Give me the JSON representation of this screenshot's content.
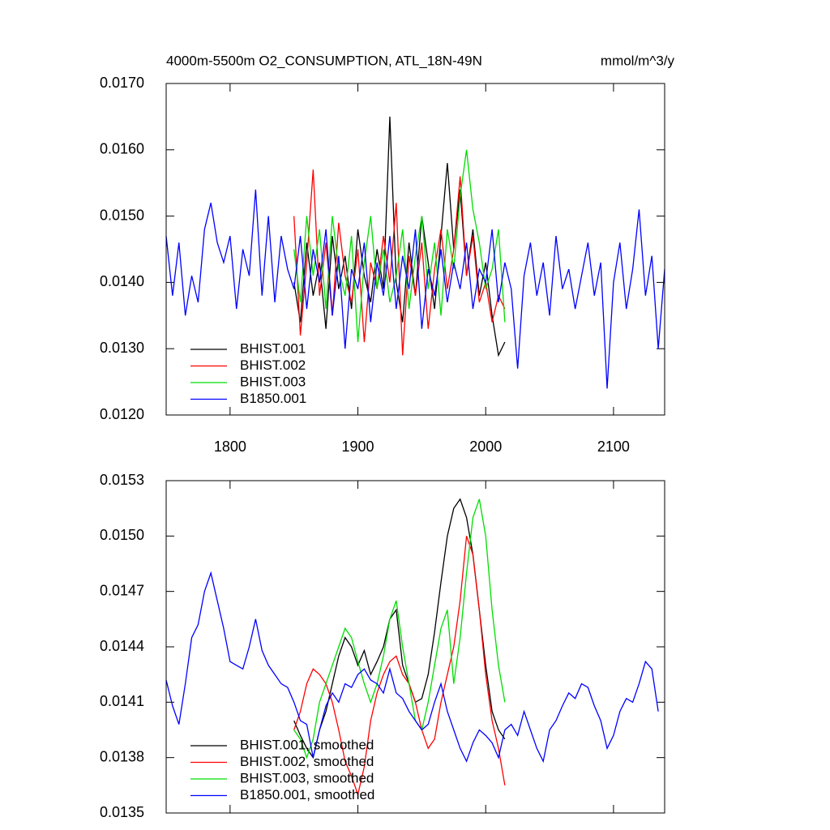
{
  "chart_data": [
    {
      "type": "line",
      "title": "4000m-5500m O2_CONSUMPTION, ATL_18N-49N",
      "units": "mmol/m^3/y",
      "xlim": [
        1750,
        2140
      ],
      "xticks": [
        1800,
        1900,
        2000,
        2100
      ],
      "ylim": [
        0.012,
        0.017
      ],
      "yticks": [
        {
          "value": 0.012,
          "label": "0.0120"
        },
        {
          "value": 0.013,
          "label": "0.0130"
        },
        {
          "value": 0.014,
          "label": "0.0140"
        },
        {
          "value": 0.015,
          "label": "0.0150"
        },
        {
          "value": 0.016,
          "label": "0.0160"
        },
        {
          "value": 0.017,
          "label": "0.0170"
        }
      ],
      "legend": "lower left",
      "series": [
        {
          "name": "BHIST.001",
          "color": "#000000",
          "x": [
            1850,
            1855,
            1860,
            1865,
            1870,
            1875,
            1880,
            1885,
            1890,
            1895,
            1900,
            1905,
            1910,
            1915,
            1920,
            1925,
            1930,
            1935,
            1940,
            1945,
            1950,
            1955,
            1960,
            1965,
            1970,
            1975,
            1980,
            1985,
            1990,
            1995,
            2000,
            2005,
            2010,
            2015
          ],
          "values": [
            0.014,
            0.0134,
            0.0146,
            0.0138,
            0.0143,
            0.0133,
            0.0147,
            0.0139,
            0.0144,
            0.0136,
            0.0148,
            0.0141,
            0.0137,
            0.0145,
            0.0139,
            0.0165,
            0.014,
            0.0134,
            0.0146,
            0.0138,
            0.015,
            0.0143,
            0.0136,
            0.0147,
            0.0158,
            0.0145,
            0.0154,
            0.0141,
            0.0148,
            0.0138,
            0.0143,
            0.0135,
            0.0129,
            0.0131
          ]
        },
        {
          "name": "BHIST.002",
          "color": "#ff0000",
          "x": [
            1850,
            1855,
            1860,
            1865,
            1870,
            1875,
            1880,
            1885,
            1890,
            1895,
            1900,
            1905,
            1910,
            1915,
            1920,
            1925,
            1930,
            1935,
            1940,
            1945,
            1950,
            1955,
            1960,
            1965,
            1970,
            1975,
            1980,
            1985,
            1990,
            1995,
            2000,
            2005,
            2010,
            2015
          ],
          "values": [
            0.015,
            0.0132,
            0.0143,
            0.0157,
            0.0138,
            0.0146,
            0.0135,
            0.0149,
            0.0141,
            0.0137,
            0.0145,
            0.0131,
            0.0143,
            0.0139,
            0.0147,
            0.014,
            0.0152,
            0.0129,
            0.0144,
            0.0138,
            0.0146,
            0.0133,
            0.0142,
            0.0148,
            0.0139,
            0.0145,
            0.0156,
            0.0141,
            0.0147,
            0.0137,
            0.014,
            0.0134,
            0.0138,
            0.0136
          ]
        },
        {
          "name": "BHIST.003",
          "color": "#00dd00",
          "x": [
            1850,
            1855,
            1860,
            1865,
            1870,
            1875,
            1880,
            1885,
            1890,
            1895,
            1900,
            1905,
            1910,
            1915,
            1920,
            1925,
            1930,
            1935,
            1940,
            1945,
            1950,
            1955,
            1960,
            1965,
            1970,
            1975,
            1980,
            1985,
            1990,
            1995,
            2000,
            2005,
            2010,
            2015
          ],
          "values": [
            0.0145,
            0.0137,
            0.015,
            0.0141,
            0.0148,
            0.0136,
            0.015,
            0.0142,
            0.0138,
            0.0147,
            0.0131,
            0.0143,
            0.015,
            0.0139,
            0.0145,
            0.0137,
            0.0141,
            0.0148,
            0.0136,
            0.0144,
            0.015,
            0.0139,
            0.0146,
            0.0135,
            0.0148,
            0.0142,
            0.0153,
            0.016,
            0.0151,
            0.0146,
            0.0139,
            0.0142,
            0.0148,
            0.0134
          ]
        },
        {
          "name": "B1850.001",
          "color": "#0000ff",
          "x": [
            1750,
            1755,
            1760,
            1765,
            1770,
            1775,
            1780,
            1785,
            1790,
            1795,
            1800,
            1805,
            1810,
            1815,
            1820,
            1825,
            1830,
            1835,
            1840,
            1845,
            1850,
            1855,
            1860,
            1865,
            1870,
            1875,
            1880,
            1885,
            1890,
            1895,
            1900,
            1905,
            1910,
            1915,
            1920,
            1925,
            1930,
            1935,
            1940,
            1945,
            1950,
            1955,
            1960,
            1965,
            1970,
            1975,
            1980,
            1985,
            1990,
            1995,
            2000,
            2005,
            2010,
            2015,
            2020,
            2025,
            2030,
            2035,
            2040,
            2045,
            2050,
            2055,
            2060,
            2065,
            2070,
            2075,
            2080,
            2085,
            2090,
            2095,
            2100,
            2105,
            2110,
            2115,
            2120,
            2125,
            2130,
            2135,
            2140
          ],
          "values": [
            0.0147,
            0.0138,
            0.0146,
            0.0135,
            0.0141,
            0.0137,
            0.0148,
            0.0152,
            0.0146,
            0.0143,
            0.0147,
            0.0136,
            0.0145,
            0.0141,
            0.0154,
            0.0138,
            0.015,
            0.0137,
            0.0147,
            0.0142,
            0.0139,
            0.0147,
            0.0136,
            0.0145,
            0.014,
            0.0148,
            0.0135,
            0.0144,
            0.013,
            0.0142,
            0.0139,
            0.0146,
            0.0134,
            0.0143,
            0.0138,
            0.0147,
            0.0136,
            0.0144,
            0.0139,
            0.0148,
            0.0133,
            0.0142,
            0.0138,
            0.0145,
            0.0137,
            0.0143,
            0.0139,
            0.0146,
            0.0136,
            0.0142,
            0.014,
            0.0148,
            0.0137,
            0.0143,
            0.0139,
            0.0127,
            0.0141,
            0.0146,
            0.0138,
            0.0143,
            0.0135,
            0.0147,
            0.0139,
            0.0142,
            0.0136,
            0.0141,
            0.0146,
            0.0138,
            0.0143,
            0.0124,
            0.014,
            0.0146,
            0.0136,
            0.0142,
            0.0151,
            0.0138,
            0.0144,
            0.013,
            0.0142
          ]
        }
      ]
    },
    {
      "type": "line",
      "xlim": [
        1750,
        2140
      ],
      "xticks": [
        1800,
        1900,
        2000,
        2100
      ],
      "ylim": [
        0.0135,
        0.0153
      ],
      "yticks": [
        0.0135,
        0.0138,
        0.0141,
        0.0144,
        0.0147,
        {
          "value": 0.015,
          "label": "0.0150"
        },
        0.0153
      ],
      "legend": "lower left",
      "series": [
        {
          "name": "BHIST.001, smoothed",
          "color": "#000000",
          "x": [
            1850,
            1855,
            1860,
            1865,
            1870,
            1875,
            1880,
            1885,
            1890,
            1895,
            1900,
            1905,
            1910,
            1915,
            1920,
            1925,
            1930,
            1935,
            1940,
            1945,
            1950,
            1955,
            1960,
            1965,
            1970,
            1975,
            1980,
            1985,
            1990,
            1995,
            2000,
            2005,
            2010,
            2015
          ],
          "values": [
            0.014,
            0.01392,
            0.01385,
            0.0138,
            0.01395,
            0.01405,
            0.0142,
            0.01435,
            0.01445,
            0.0144,
            0.0143,
            0.01438,
            0.01425,
            0.01432,
            0.0144,
            0.01455,
            0.0146,
            0.0143,
            0.0142,
            0.0141,
            0.01412,
            0.01425,
            0.01448,
            0.01475,
            0.015,
            0.01515,
            0.0152,
            0.0151,
            0.0149,
            0.0146,
            0.0143,
            0.01405,
            0.01395,
            0.0139
          ]
        },
        {
          "name": "BHIST.002, smoothed",
          "color": "#ff0000",
          "x": [
            1850,
            1855,
            1860,
            1865,
            1870,
            1875,
            1880,
            1885,
            1890,
            1895,
            1900,
            1905,
            1910,
            1915,
            1920,
            1925,
            1930,
            1935,
            1940,
            1945,
            1950,
            1955,
            1960,
            1965,
            1970,
            1975,
            1980,
            1985,
            1990,
            1995,
            2000,
            2005,
            2010,
            2015
          ],
          "values": [
            0.01395,
            0.01405,
            0.0142,
            0.01428,
            0.01425,
            0.0142,
            0.0141,
            0.01395,
            0.01378,
            0.0137,
            0.0136,
            0.01375,
            0.014,
            0.01415,
            0.01425,
            0.01432,
            0.01435,
            0.01425,
            0.0142,
            0.0141,
            0.01395,
            0.01385,
            0.0139,
            0.0141,
            0.01425,
            0.0144,
            0.01465,
            0.015,
            0.0149,
            0.0146,
            0.01425,
            0.014,
            0.01385,
            0.01365
          ]
        },
        {
          "name": "BHIST.003, smoothed",
          "color": "#00dd00",
          "x": [
            1850,
            1855,
            1860,
            1865,
            1870,
            1875,
            1880,
            1885,
            1890,
            1895,
            1900,
            1905,
            1910,
            1915,
            1920,
            1925,
            1930,
            1935,
            1940,
            1945,
            1950,
            1955,
            1960,
            1965,
            1970,
            1975,
            1980,
            1985,
            1990,
            1995,
            2000,
            2005,
            2010,
            2015
          ],
          "values": [
            0.01395,
            0.0139,
            0.0138,
            0.0139,
            0.0141,
            0.0142,
            0.0143,
            0.0144,
            0.0145,
            0.01445,
            0.01432,
            0.0142,
            0.0141,
            0.0142,
            0.01435,
            0.01455,
            0.01465,
            0.0144,
            0.0142,
            0.014,
            0.01395,
            0.0141,
            0.0143,
            0.0145,
            0.0146,
            0.0142,
            0.01445,
            0.0148,
            0.0151,
            0.0152,
            0.015,
            0.0146,
            0.0143,
            0.0141
          ]
        },
        {
          "name": "B1850.001, smoothed",
          "color": "#0000ff",
          "x": [
            1750,
            1755,
            1760,
            1765,
            1770,
            1775,
            1780,
            1785,
            1790,
            1795,
            1800,
            1805,
            1810,
            1815,
            1820,
            1825,
            1830,
            1835,
            1840,
            1845,
            1850,
            1855,
            1860,
            1865,
            1870,
            1875,
            1880,
            1885,
            1890,
            1895,
            1900,
            1905,
            1910,
            1915,
            1920,
            1925,
            1930,
            1935,
            1940,
            1945,
            1950,
            1955,
            1960,
            1965,
            1970,
            1975,
            1980,
            1985,
            1990,
            1995,
            2000,
            2005,
            2010,
            2015,
            2020,
            2025,
            2030,
            2035,
            2040,
            2045,
            2050,
            2055,
            2060,
            2065,
            2070,
            2075,
            2080,
            2085,
            2090,
            2095,
            2100,
            2105,
            2110,
            2115,
            2120,
            2125,
            2130,
            2135
          ],
          "values": [
            0.01422,
            0.01408,
            0.01398,
            0.0142,
            0.01445,
            0.01452,
            0.0147,
            0.0148,
            0.01465,
            0.0145,
            0.01432,
            0.0143,
            0.01428,
            0.0144,
            0.01455,
            0.01438,
            0.0143,
            0.01425,
            0.0142,
            0.01418,
            0.0141,
            0.014,
            0.01398,
            0.0138,
            0.01395,
            0.01408,
            0.01415,
            0.0141,
            0.0142,
            0.01418,
            0.01425,
            0.01428,
            0.01422,
            0.0142,
            0.01415,
            0.01428,
            0.01415,
            0.01412,
            0.01405,
            0.014,
            0.01395,
            0.01398,
            0.0141,
            0.0142,
            0.01405,
            0.01395,
            0.01385,
            0.01378,
            0.01388,
            0.01395,
            0.01392,
            0.01388,
            0.0138,
            0.01395,
            0.01398,
            0.01392,
            0.01405,
            0.01395,
            0.01385,
            0.01378,
            0.01395,
            0.014,
            0.01408,
            0.01415,
            0.01412,
            0.0142,
            0.01418,
            0.01408,
            0.014,
            0.01385,
            0.01392,
            0.01405,
            0.01412,
            0.0141,
            0.0142,
            0.01432,
            0.01428,
            0.01405
          ]
        }
      ]
    }
  ]
}
